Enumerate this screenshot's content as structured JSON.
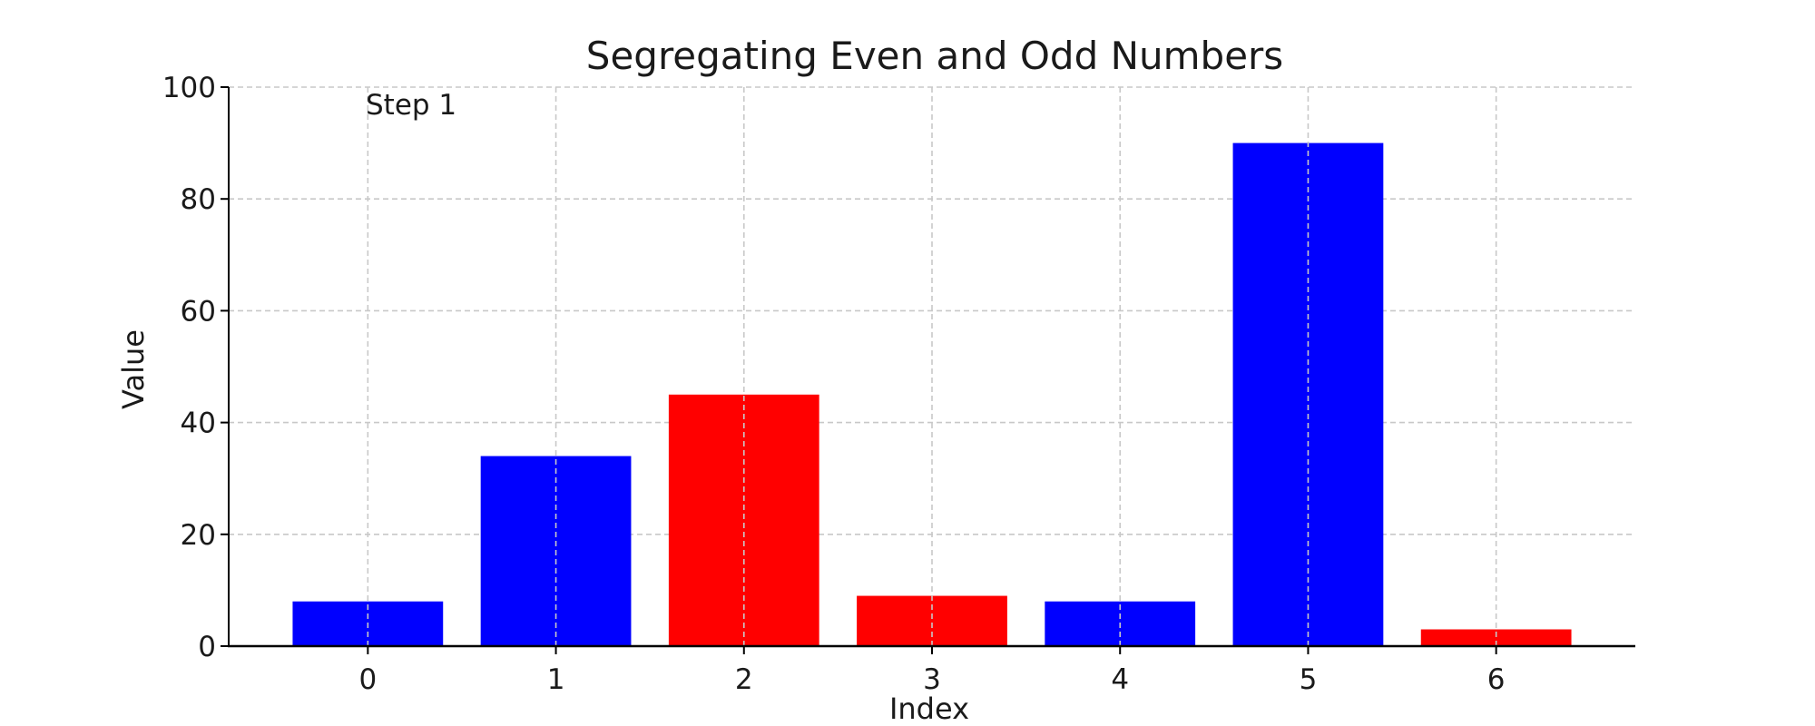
{
  "chart_data": {
    "type": "bar",
    "title": "Segregating Even and Odd Numbers",
    "xlabel": "Index",
    "ylabel": "Value",
    "annotation": "Step 1",
    "categories": [
      "0",
      "1",
      "2",
      "3",
      "4",
      "5",
      "6"
    ],
    "values": [
      8,
      34,
      45,
      9,
      8,
      90,
      3
    ],
    "bar_colors": [
      "#0000ff",
      "#0000ff",
      "#ff0000",
      "#ff0000",
      "#0000ff",
      "#0000ff",
      "#ff0000"
    ],
    "ylim": [
      0,
      100
    ],
    "yticks": [
      0,
      20,
      40,
      60,
      80,
      100
    ],
    "xlim": [
      -0.74,
      6.74
    ],
    "grid": true,
    "legend": null
  }
}
